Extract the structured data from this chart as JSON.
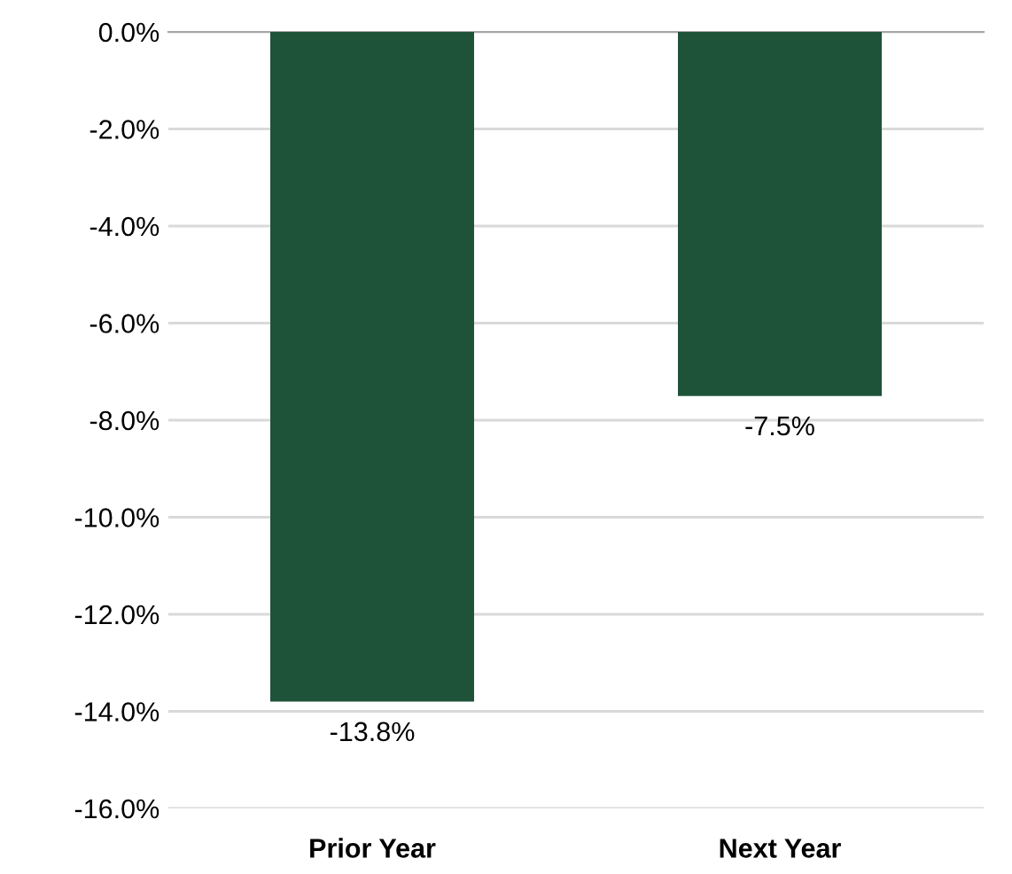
{
  "chart_data": {
    "type": "bar",
    "categories": [
      "Prior Year",
      "Next Year"
    ],
    "values": [
      -13.8,
      -7.5
    ],
    "color": "#1e5339",
    "value_labels": [
      "-13.8%",
      "-7.5%"
    ],
    "ylim": [
      -16,
      0
    ],
    "yticks": [
      {
        "value": -16,
        "label": "-16.0%"
      },
      {
        "value": -14,
        "label": "-14.0%"
      },
      {
        "value": -12,
        "label": "-12.0%"
      },
      {
        "value": -10,
        "label": "-10.0%"
      },
      {
        "value": -8,
        "label": "-8.0%"
      },
      {
        "value": -6,
        "label": "-6.0%"
      },
      {
        "value": -4,
        "label": "-4.0%"
      },
      {
        "value": -2,
        "label": "-2.0%"
      },
      {
        "value": 0,
        "label": "0.0%"
      }
    ],
    "grid": "y"
  }
}
